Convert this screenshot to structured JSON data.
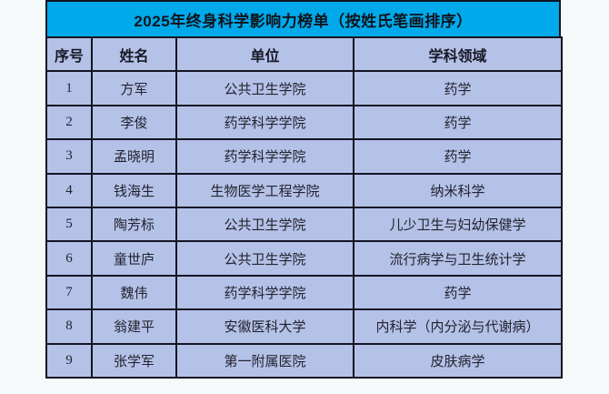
{
  "page": {
    "background_color": "#f5f9fa"
  },
  "table": {
    "title": "2025年终身科学影响力榜单（按姓氏笔画排序）",
    "title_bg_color": "#00a9ea",
    "row_bg_color": "#b4c2e8",
    "border_color": "#141422",
    "headers": {
      "index": "序号",
      "name": "姓名",
      "unit": "单位",
      "field": "学科领域"
    },
    "rows": [
      {
        "index": "1",
        "name": "方军",
        "unit": "公共卫生学院",
        "field": "药学"
      },
      {
        "index": "2",
        "name": "李俊",
        "unit": "药学科学学院",
        "field": "药学"
      },
      {
        "index": "3",
        "name": "孟晓明",
        "unit": "药学科学学院",
        "field": "药学"
      },
      {
        "index": "4",
        "name": "钱海生",
        "unit": "生物医学工程学院",
        "field": "纳米科学"
      },
      {
        "index": "5",
        "name": "陶芳标",
        "unit": "公共卫生学院",
        "field": "儿少卫生与妇幼保健学"
      },
      {
        "index": "6",
        "name": "童世庐",
        "unit": "公共卫生学院",
        "field": "流行病学与卫生统计学"
      },
      {
        "index": "7",
        "name": "魏伟",
        "unit": "药学科学学院",
        "field": "药学"
      },
      {
        "index": "8",
        "name": "翁建平",
        "unit": "安徽医科大学",
        "field": "内科学（内分泌与代谢病）"
      },
      {
        "index": "9",
        "name": "张学军",
        "unit": "第一附属医院",
        "field": "皮肤病学"
      }
    ]
  }
}
